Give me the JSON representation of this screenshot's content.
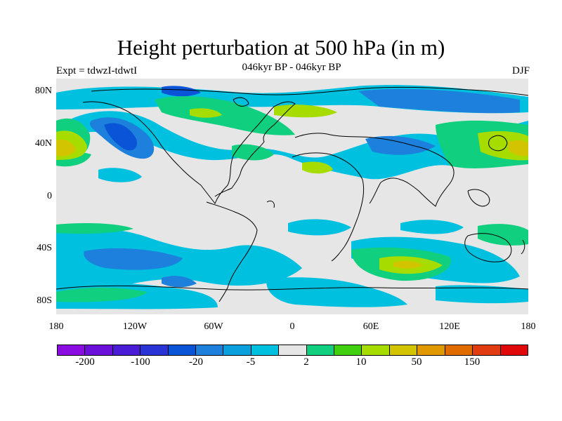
{
  "figure": {
    "title": "Height perturbation at 500 hPa (in m)",
    "subtitle": "046kyr BP - 046kyr BP",
    "left_label": "Expt = tdwzI-tdwtI",
    "right_label": "DJF"
  },
  "map": {
    "projection": "cylindrical-equidistant",
    "background_color": "#e6e6e6",
    "coastline_color": "#000000",
    "lat_labels": [
      "80N",
      "40N",
      "0",
      "40S",
      "80S"
    ],
    "lon_labels": [
      "180",
      "120W",
      "60W",
      "0",
      "60E",
      "120E",
      "180"
    ]
  },
  "colorbar": {
    "colors": [
      "#8a0ce0",
      "#6a10d8",
      "#4a1cd6",
      "#2a34d6",
      "#0a54d8",
      "#1c80dc",
      "#0aa0de",
      "#00c0e0",
      "#e6e6e6",
      "#10d080",
      "#40d010",
      "#a6dc00",
      "#d2c400",
      "#e09a00",
      "#e06c00",
      "#e03c10",
      "#e00808"
    ],
    "labels": [
      "-200",
      "-100",
      "-20",
      "-5",
      "2",
      "10",
      "50",
      "150"
    ]
  },
  "chart_data": {
    "type": "heatmap",
    "title": "Height perturbation at 500 hPa (in m)",
    "variable": "500 hPa geopotential height perturbation",
    "units": "m",
    "season": "DJF",
    "experiment": "tdwzI-tdwtI",
    "period": "046kyr BP - 046kyr BP",
    "lon_range": [
      -180,
      180
    ],
    "lat_range": [
      -90,
      90
    ]
  }
}
